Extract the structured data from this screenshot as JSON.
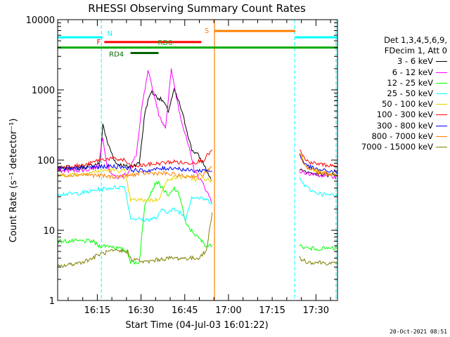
{
  "chart_data": {
    "type": "line",
    "title": "RHESSI Observing Summary Count Rates",
    "xlabel": "Start Time (04-Jul-03 16:01:22)",
    "ylabel": "Count Rate (s⁻¹ detector⁻¹)",
    "yscale": "log",
    "xlim_minutes": [
      0,
      96
    ],
    "ylim": [
      1,
      10000
    ],
    "x_ticks": [
      {
        "label": "16:15",
        "minute": 13.6
      },
      {
        "label": "16:30",
        "minute": 28.6
      },
      {
        "label": "16:45",
        "minute": 43.6
      },
      {
        "label": "17:00",
        "minute": 58.6
      },
      {
        "label": "17:15",
        "minute": 73.6
      },
      {
        "label": "17:30",
        "minute": 88.6
      }
    ],
    "y_ticks": [
      {
        "label": "1",
        "value": 1
      },
      {
        "label": "10",
        "value": 10
      },
      {
        "label": "100",
        "value": 100
      },
      {
        "label": "1000",
        "value": 1000
      },
      {
        "label": "10000",
        "value": 10000
      }
    ],
    "legend_header": [
      "Det 1,3,4,5,6,9,",
      "FDecim 1, Att 0"
    ],
    "legend_position": "right",
    "series": [
      {
        "name": "3 - 6 keV",
        "color": "#000000",
        "points": [
          [
            0,
            75
          ],
          [
            10,
            80
          ],
          [
            14.5,
            90
          ],
          [
            15.5,
            330
          ],
          [
            17,
            180
          ],
          [
            20,
            90
          ],
          [
            24,
            80
          ],
          [
            28,
            90
          ],
          [
            30,
            500
          ],
          [
            32,
            950
          ],
          [
            34,
            800
          ],
          [
            36,
            700
          ],
          [
            38,
            500
          ],
          [
            40,
            1000
          ],
          [
            42,
            600
          ],
          [
            44,
            300
          ],
          [
            46,
            140
          ],
          [
            48,
            120
          ],
          [
            50,
            90
          ],
          [
            52,
            60
          ],
          [
            53,
            50
          ]
        ]
      },
      {
        "name": "6 - 12 keV",
        "color": "#ff00ff",
        "points": [
          [
            0,
            70
          ],
          [
            10,
            73
          ],
          [
            14,
            80
          ],
          [
            15.5,
            220
          ],
          [
            17,
            80
          ],
          [
            20,
            55
          ],
          [
            24,
            65
          ],
          [
            27,
            120
          ],
          [
            29,
            600
          ],
          [
            31,
            1800
          ],
          [
            33,
            900
          ],
          [
            35,
            400
          ],
          [
            37,
            300
          ],
          [
            39,
            1900
          ],
          [
            41,
            700
          ],
          [
            43,
            300
          ],
          [
            45,
            150
          ],
          [
            47,
            70
          ],
          [
            50,
            45
          ],
          [
            53,
            25
          ]
        ]
      },
      {
        "name": "12 - 25 keV",
        "color": "#00ff00",
        "points": [
          [
            0,
            7
          ],
          [
            8,
            7
          ],
          [
            12,
            7
          ],
          [
            14,
            6
          ],
          [
            18,
            6
          ],
          [
            24,
            5
          ],
          [
            25,
            3.5
          ],
          [
            28,
            3.5
          ],
          [
            30,
            25
          ],
          [
            32,
            35
          ],
          [
            34,
            50
          ],
          [
            36,
            40
          ],
          [
            38,
            30
          ],
          [
            40,
            40
          ],
          [
            42,
            30
          ],
          [
            44,
            12
          ],
          [
            48,
            8
          ],
          [
            51,
            6
          ],
          [
            53,
            6
          ]
        ]
      },
      {
        "name": "25 - 50 keV",
        "color": "#00ffff",
        "points": [
          [
            0,
            33
          ],
          [
            5,
            33
          ],
          [
            10,
            35
          ],
          [
            14,
            38
          ],
          [
            18,
            40
          ],
          [
            23,
            42
          ],
          [
            25,
            15
          ],
          [
            30,
            14
          ],
          [
            34,
            15
          ],
          [
            36,
            20
          ],
          [
            38,
            18
          ],
          [
            40,
            20
          ],
          [
            42,
            18
          ],
          [
            44,
            15
          ],
          [
            46,
            30
          ],
          [
            50,
            28
          ],
          [
            53,
            25
          ]
        ]
      },
      {
        "name": "50 - 100 keV",
        "color": "#e6d200",
        "points": [
          [
            0,
            60
          ],
          [
            5,
            62
          ],
          [
            10,
            65
          ],
          [
            14,
            70
          ],
          [
            18,
            72
          ],
          [
            23,
            70
          ],
          [
            25,
            27
          ],
          [
            34,
            27
          ],
          [
            35,
            30
          ],
          [
            38,
            55
          ],
          [
            44,
            58
          ],
          [
            48,
            52
          ],
          [
            50,
            55
          ],
          [
            53,
            50
          ]
        ]
      },
      {
        "name": "100 - 300 keV",
        "color": "#ff0000",
        "points": [
          [
            0,
            80
          ],
          [
            5,
            82
          ],
          [
            10,
            85
          ],
          [
            14,
            100
          ],
          [
            18,
            105
          ],
          [
            23,
            100
          ],
          [
            25,
            80
          ],
          [
            30,
            85
          ],
          [
            35,
            90
          ],
          [
            40,
            95
          ],
          [
            44,
            90
          ],
          [
            48,
            95
          ],
          [
            50,
            100
          ],
          [
            53,
            140
          ]
        ]
      },
      {
        "name": "300 - 800 keV",
        "color": "#0000ff",
        "points": [
          [
            0,
            75
          ],
          [
            5,
            75
          ],
          [
            10,
            78
          ],
          [
            14,
            80
          ],
          [
            18,
            82
          ],
          [
            23,
            80
          ],
          [
            26,
            72
          ],
          [
            30,
            70
          ],
          [
            35,
            75
          ],
          [
            40,
            78
          ],
          [
            44,
            72
          ],
          [
            48,
            70
          ],
          [
            50,
            72
          ],
          [
            53,
            70
          ]
        ]
      },
      {
        "name": "800 - 7000 keV",
        "color": "#ff8000",
        "points": [
          [
            0,
            60
          ],
          [
            5,
            62
          ],
          [
            10,
            62
          ],
          [
            14,
            60
          ],
          [
            18,
            58
          ],
          [
            23,
            58
          ],
          [
            26,
            62
          ],
          [
            30,
            65
          ],
          [
            35,
            65
          ],
          [
            40,
            62
          ],
          [
            44,
            58
          ],
          [
            48,
            60
          ],
          [
            50,
            62
          ],
          [
            53,
            80
          ]
        ]
      },
      {
        "name": "7000 - 15000 keV",
        "color": "#808000",
        "points": [
          [
            0,
            3
          ],
          [
            8,
            3.5
          ],
          [
            12,
            4
          ],
          [
            14,
            4.5
          ],
          [
            18,
            5
          ],
          [
            24,
            5
          ],
          [
            25,
            4
          ],
          [
            30,
            3.5
          ],
          [
            34,
            3.8
          ],
          [
            38,
            4
          ],
          [
            42,
            4
          ],
          [
            48,
            4
          ],
          [
            51,
            5
          ],
          [
            53,
            18
          ]
        ]
      }
    ],
    "series_after_gap": [
      {
        "name": "3 - 6 keV",
        "color": "#000000",
        "points": [
          [
            83,
            75
          ],
          [
            85,
            68
          ],
          [
            88,
            64
          ],
          [
            92,
            62
          ],
          [
            96,
            60
          ]
        ]
      },
      {
        "name": "6 - 12 keV",
        "color": "#ff00ff",
        "points": [
          [
            83,
            70
          ],
          [
            85,
            65
          ],
          [
            88,
            62
          ],
          [
            92,
            60
          ],
          [
            96,
            58
          ]
        ]
      },
      {
        "name": "12 - 25 keV",
        "color": "#00ff00",
        "points": [
          [
            83,
            6
          ],
          [
            86,
            5.5
          ],
          [
            90,
            5.5
          ],
          [
            96,
            5.5
          ]
        ]
      },
      {
        "name": "25 - 50 keV",
        "color": "#00ffff",
        "points": [
          [
            83,
            55
          ],
          [
            85,
            42
          ],
          [
            88,
            35
          ],
          [
            92,
            32
          ],
          [
            96,
            31
          ]
        ]
      },
      {
        "name": "50 - 100 keV",
        "color": "#e6d200",
        "points": [
          [
            83,
            130
          ],
          [
            85,
            85
          ],
          [
            88,
            72
          ],
          [
            92,
            65
          ],
          [
            96,
            62
          ]
        ]
      },
      {
        "name": "100 - 300 keV",
        "color": "#ff0000",
        "points": [
          [
            83,
            140
          ],
          [
            85,
            100
          ],
          [
            88,
            90
          ],
          [
            92,
            85
          ],
          [
            96,
            82
          ]
        ]
      },
      {
        "name": "300 - 800 keV",
        "color": "#0000ff",
        "points": [
          [
            83,
            120
          ],
          [
            85,
            85
          ],
          [
            88,
            75
          ],
          [
            92,
            70
          ],
          [
            96,
            68
          ]
        ]
      },
      {
        "name": "800 - 7000 keV",
        "color": "#ff8000",
        "points": [
          [
            83,
            120
          ],
          [
            85,
            80
          ],
          [
            88,
            70
          ],
          [
            92,
            65
          ],
          [
            96,
            62
          ]
        ]
      },
      {
        "name": "7000 - 15000 keV",
        "color": "#808000",
        "points": [
          [
            83,
            4
          ],
          [
            86,
            3.5
          ],
          [
            90,
            3.5
          ],
          [
            96,
            3.3
          ]
        ]
      }
    ],
    "state_bars": [
      {
        "label": "N",
        "color": "#00ffff",
        "segments": [
          [
            0,
            15.5
          ],
          [
            81.5,
            96
          ]
        ],
        "level": 5600
      },
      {
        "label": "F",
        "color": "#ff0000",
        "segments": [
          [
            16,
            49.3
          ]
        ],
        "level": 4800
      },
      {
        "label": "S",
        "color": "#ff8000",
        "segments": [
          [
            53.8,
            81.5
          ]
        ],
        "level": 6900
      },
      {
        "label": "RD0",
        "color": "#00aa00",
        "segments": [
          [
            0,
            96
          ]
        ],
        "level": 4000
      },
      {
        "label": "RD4",
        "color": "#006400",
        "segments": [
          [
            25,
            34.6
          ]
        ],
        "level": 3350
      }
    ],
    "eclipse_lines_minutes": [
      0,
      15.0,
      81.3,
      95.5
    ],
    "saa_line_minutes": 53.8,
    "date_stamp": "20-Oct-2021 08:51"
  },
  "colors": {
    "axes": "#000000",
    "background": "#ffffff"
  }
}
